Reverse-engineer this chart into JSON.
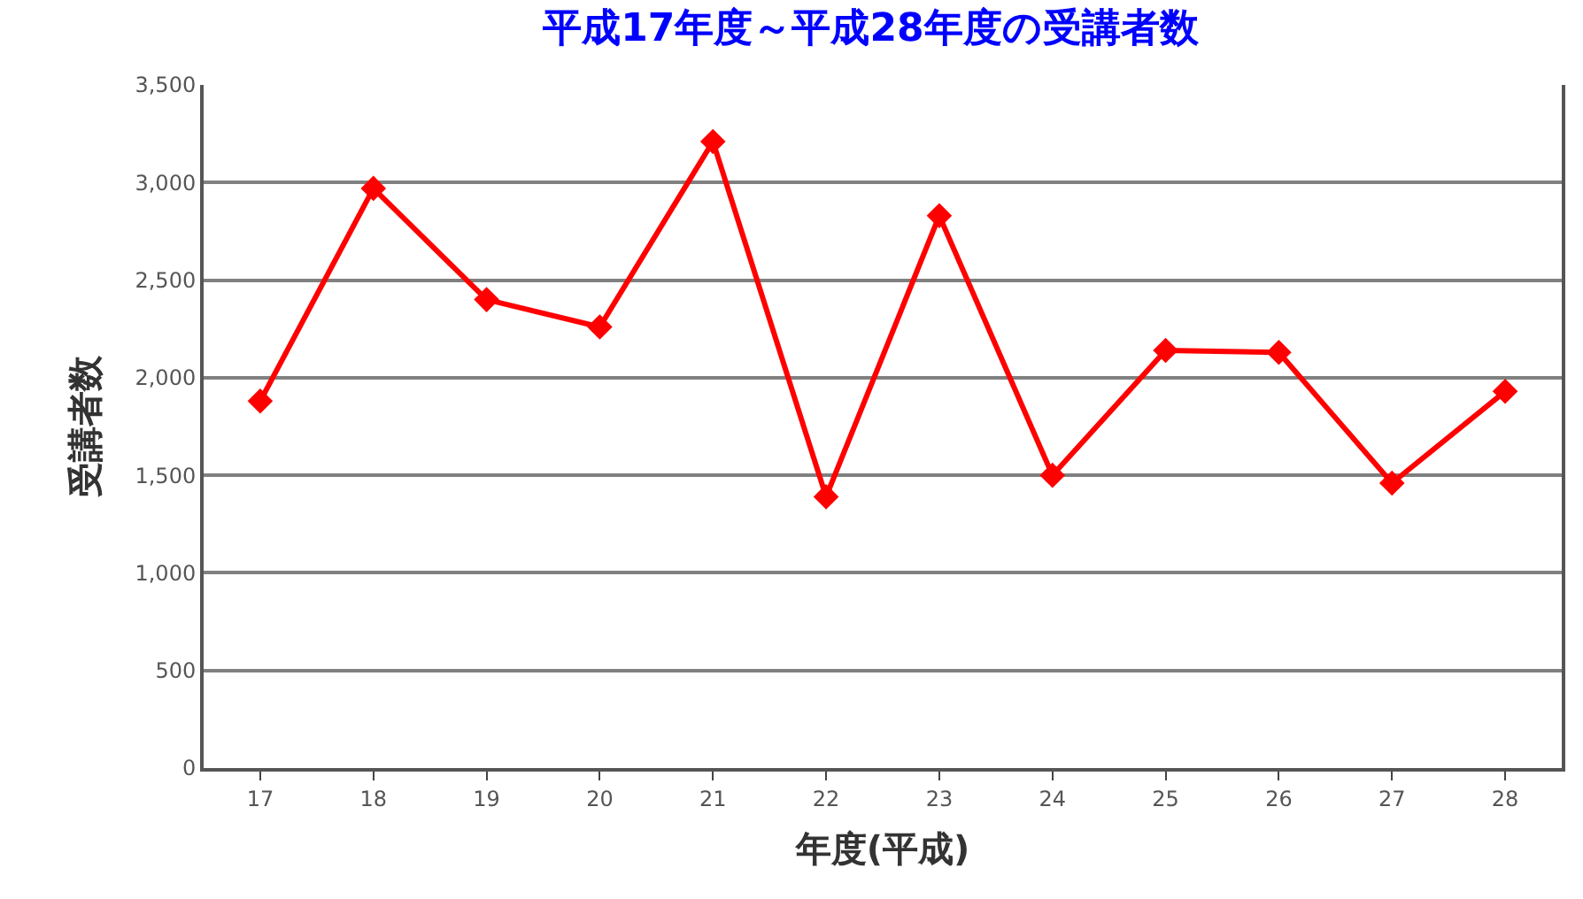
{
  "chart_data": {
    "type": "line",
    "title": "平成17年度～平成28年度の受講者数",
    "xlabel": "年度(平成)",
    "ylabel": "受講者数",
    "categories": [
      "17",
      "18",
      "19",
      "20",
      "21",
      "22",
      "23",
      "24",
      "25",
      "26",
      "27",
      "28"
    ],
    "series": [
      {
        "color": "#ff0000",
        "values": [
          1880,
          2970,
          2400,
          2260,
          3210,
          1390,
          2830,
          1500,
          2140,
          2130,
          1460,
          1930
        ]
      }
    ],
    "ylim": [
      0,
      3500
    ],
    "yticks": [
      {
        "value": 0,
        "label": "0"
      },
      {
        "value": 500,
        "label": "500"
      },
      {
        "value": 1000,
        "label": "1,000"
      },
      {
        "value": 1500,
        "label": "1,500"
      },
      {
        "value": 2000,
        "label": "2,000"
      },
      {
        "value": 2500,
        "label": "2,500"
      },
      {
        "value": 3000,
        "label": "3,000"
      },
      {
        "value": 3500,
        "label": "3,500"
      }
    ],
    "grid": "y",
    "marker": "diamond",
    "line_style": "solid"
  }
}
